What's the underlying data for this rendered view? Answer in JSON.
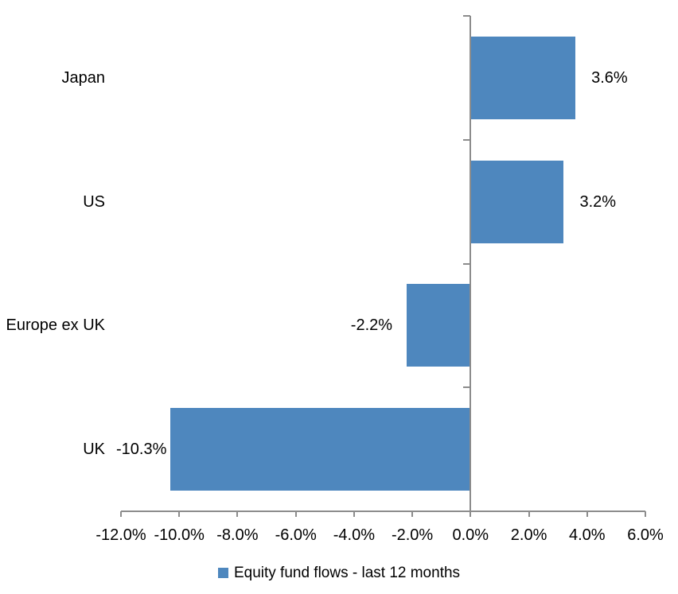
{
  "chart_data": {
    "type": "bar",
    "orientation": "horizontal",
    "title": "",
    "categories": [
      "Japan",
      "US",
      "Europe ex UK",
      "UK"
    ],
    "values": [
      3.6,
      3.2,
      -2.2,
      -10.3
    ],
    "data_labels": [
      "3.6%",
      "3.2%",
      "-2.2%",
      "-10.3%"
    ],
    "xlim": [
      -12,
      6
    ],
    "x_tick_values": [
      -12,
      -10,
      -8,
      -6,
      -4,
      -2,
      0,
      2,
      4,
      6
    ],
    "x_tick_labels": [
      "-12.0%",
      "-10.0%",
      "-8.0%",
      "-6.0%",
      "-4.0%",
      "-2.0%",
      "0.0%",
      "2.0%",
      "4.0%",
      "6.0%"
    ],
    "grid": false,
    "legend": {
      "position": "bottom",
      "items": [
        {
          "label": "Equity fund flows - last 12 months",
          "color": "#4e87be"
        }
      ]
    },
    "colors": {
      "bar": "#4e87be",
      "axis": "#8c8c8c",
      "text": "#000000",
      "background": "#ffffff"
    }
  }
}
